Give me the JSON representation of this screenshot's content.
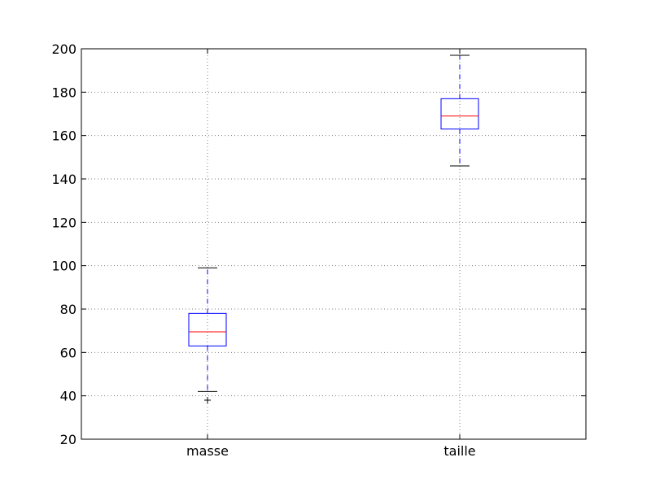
{
  "chart_data": {
    "type": "box",
    "title": "",
    "xlabel": "",
    "ylabel": "",
    "categories": [
      "masse",
      "taille"
    ],
    "ylim": [
      20,
      200
    ],
    "yticks": [
      20,
      40,
      60,
      80,
      100,
      120,
      140,
      160,
      180,
      200
    ],
    "grid": true,
    "boxes": [
      {
        "category": "masse",
        "whisker_low": 42,
        "q1": 63,
        "median": 69.5,
        "q3": 78,
        "whisker_high": 99,
        "outliers": [
          38
        ]
      },
      {
        "category": "taille",
        "whisker_low": 146,
        "q1": 163,
        "median": 169,
        "q3": 177,
        "whisker_high": 197,
        "outliers": []
      }
    ],
    "colors": {
      "box": "#0000ff",
      "median": "#ff0000",
      "whisker": "#0000ff",
      "cap": "#000000",
      "outlier": "#000000",
      "grid": "#808080",
      "axes": "#000000"
    }
  }
}
